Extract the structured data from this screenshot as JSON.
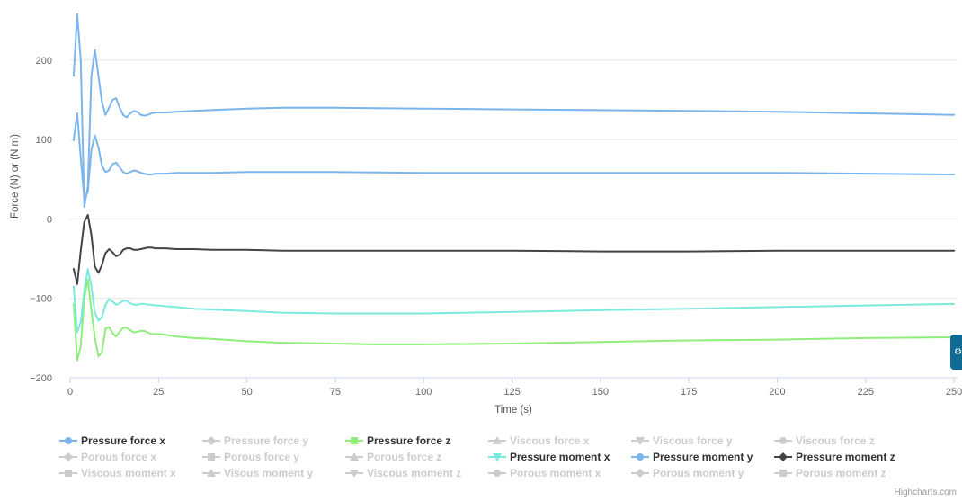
{
  "chart_data": {
    "type": "line",
    "xlabel": "Time (s)",
    "ylabel": "Force (N) or (N m)",
    "xlim": [
      0,
      251
    ],
    "ylim": [
      -200,
      270
    ],
    "x_ticks": [
      0,
      25,
      50,
      75,
      100,
      125,
      150,
      175,
      200,
      225,
      250
    ],
    "y_ticks": [
      -200,
      -100,
      0,
      100,
      200
    ],
    "grid": "horizontal",
    "legend_position": "bottom",
    "series": [
      {
        "name": "Pressure force x",
        "visible": true,
        "color": "#7cb5ec",
        "marker": "circle",
        "x": [
          1,
          2,
          3,
          4,
          5,
          6,
          7,
          8,
          9,
          10,
          11,
          12,
          13,
          14,
          15,
          16,
          17,
          18,
          19,
          20,
          21,
          22,
          23,
          24,
          25,
          27,
          30,
          35,
          40,
          50,
          60,
          75,
          100,
          125,
          150,
          175,
          200,
          225,
          250
        ],
        "y": [
          99,
          133,
          77,
          26,
          34,
          87,
          105,
          90,
          67,
          59,
          61,
          69,
          71,
          65,
          59,
          57,
          59,
          61,
          60,
          58,
          57,
          56,
          56,
          57,
          57,
          57,
          58,
          58,
          58,
          59,
          59,
          59,
          58,
          58,
          58,
          58,
          58,
          57,
          56
        ]
      },
      {
        "name": "Pressure force y",
        "visible": false,
        "color": "#cccccc",
        "marker": "diamond"
      },
      {
        "name": "Pressure force z",
        "visible": true,
        "color": "#90ed7d",
        "marker": "square",
        "x": [
          1,
          2,
          3,
          4,
          5,
          6,
          7,
          8,
          9,
          10,
          11,
          12,
          13,
          14,
          15,
          16,
          17,
          18,
          19,
          20,
          21,
          22,
          23,
          24,
          25,
          27,
          30,
          35,
          40,
          50,
          60,
          75,
          85,
          100,
          125,
          150,
          175,
          200,
          225,
          250
        ],
        "y": [
          -107,
          -178,
          -160,
          -100,
          -76,
          -115,
          -150,
          -173,
          -168,
          -138,
          -136,
          -144,
          -148,
          -142,
          -137,
          -137,
          -140,
          -143,
          -142,
          -141,
          -141,
          -143,
          -145,
          -145,
          -145,
          -146,
          -148,
          -150,
          -151,
          -154,
          -156,
          -157,
          -158,
          -158,
          -157,
          -155,
          -153,
          -152,
          -150,
          -149
        ]
      },
      {
        "name": "Viscous force x",
        "visible": false,
        "color": "#cccccc",
        "marker": "triangle"
      },
      {
        "name": "Viscous force y",
        "visible": false,
        "color": "#cccccc",
        "marker": "triangle-down"
      },
      {
        "name": "Viscous force z",
        "visible": false,
        "color": "#cccccc",
        "marker": "circle"
      },
      {
        "name": "Porous force x",
        "visible": false,
        "color": "#cccccc",
        "marker": "diamond"
      },
      {
        "name": "Porous force y",
        "visible": false,
        "color": "#cccccc",
        "marker": "square"
      },
      {
        "name": "Porous force z",
        "visible": false,
        "color": "#cccccc",
        "marker": "triangle"
      },
      {
        "name": "Pressure moment x",
        "visible": true,
        "color": "#7ce9df",
        "marker": "triangle-down",
        "x": [
          1,
          2,
          3,
          4,
          5,
          6,
          7,
          8,
          9,
          10,
          11,
          12,
          13,
          14,
          15,
          16,
          17,
          18,
          19,
          20,
          21,
          22,
          23,
          24,
          25,
          27,
          30,
          35,
          40,
          50,
          60,
          75,
          100,
          125,
          150,
          175,
          200,
          225,
          250
        ],
        "y": [
          -85,
          -143,
          -130,
          -90,
          -63,
          -85,
          -118,
          -128,
          -124,
          -108,
          -101,
          -104,
          -108,
          -106,
          -103,
          -103,
          -106,
          -108,
          -108,
          -107,
          -107,
          -108,
          -108,
          -109,
          -109,
          -110,
          -111,
          -113,
          -114,
          -116,
          -118,
          -119,
          -119,
          -117,
          -115,
          -113,
          -111,
          -109,
          -107
        ]
      },
      {
        "name": "Pressure moment y",
        "visible": true,
        "color": "#7cb5ec",
        "marker": "circle",
        "x": [
          1,
          2,
          3,
          4,
          5,
          6,
          7,
          8,
          9,
          10,
          11,
          12,
          13,
          14,
          15,
          16,
          17,
          18,
          19,
          20,
          21,
          22,
          23,
          24,
          25,
          27,
          30,
          35,
          40,
          50,
          60,
          75,
          100,
          125,
          150,
          175,
          200,
          225,
          250
        ],
        "y": [
          180,
          258,
          200,
          15,
          41,
          180,
          213,
          180,
          147,
          131,
          140,
          150,
          152,
          140,
          131,
          128,
          133,
          136,
          135,
          131,
          130,
          131,
          133,
          134,
          134,
          134,
          135,
          136,
          137,
          139,
          140,
          140,
          139,
          138,
          137,
          136,
          135,
          133,
          131
        ]
      },
      {
        "name": "Pressure moment z",
        "visible": true,
        "color": "#434348",
        "marker": "diamond",
        "x": [
          1,
          2,
          3,
          4,
          5,
          6,
          7,
          8,
          9,
          10,
          11,
          12,
          13,
          14,
          15,
          16,
          17,
          18,
          19,
          20,
          21,
          22,
          23,
          24,
          25,
          27,
          30,
          35,
          40,
          50,
          60,
          75,
          100,
          125,
          150,
          175,
          200,
          225,
          250
        ],
        "y": [
          -63,
          -82,
          -40,
          -4,
          5,
          -20,
          -60,
          -68,
          -58,
          -43,
          -38,
          -42,
          -47,
          -45,
          -39,
          -37,
          -37,
          -39,
          -39,
          -38,
          -37,
          -36,
          -36,
          -37,
          -37,
          -37,
          -38,
          -38,
          -39,
          -39,
          -40,
          -40,
          -40,
          -40,
          -41,
          -41,
          -40,
          -40,
          -40
        ]
      },
      {
        "name": "Viscous moment x",
        "visible": false,
        "color": "#cccccc",
        "marker": "square"
      },
      {
        "name": "Visous moment y",
        "visible": false,
        "color": "#cccccc",
        "marker": "triangle"
      },
      {
        "name": "Viscous moment z",
        "visible": false,
        "color": "#cccccc",
        "marker": "triangle-down"
      },
      {
        "name": "Porous moment x",
        "visible": false,
        "color": "#cccccc",
        "marker": "circle"
      },
      {
        "name": "Porous moment y",
        "visible": false,
        "color": "#cccccc",
        "marker": "diamond"
      },
      {
        "name": "Porous moment z",
        "visible": false,
        "color": "#cccccc",
        "marker": "square"
      }
    ]
  },
  "credits": "Highcharts.com",
  "side_tab_icon": "gear-icon"
}
